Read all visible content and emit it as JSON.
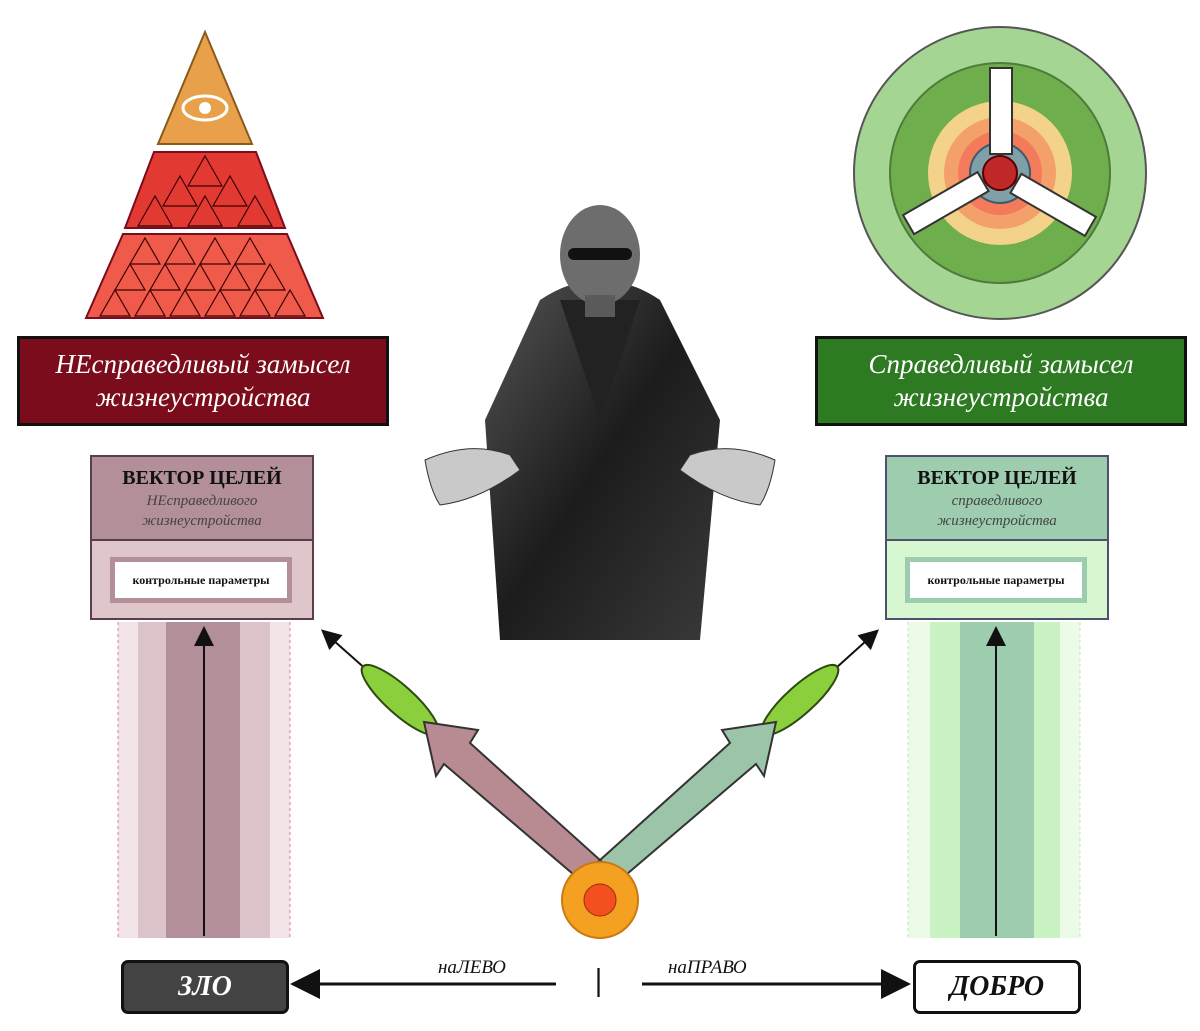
{
  "left": {
    "title_line1": "НЕсправедливый замысел",
    "title_line2": "жизнеустройства",
    "vector_title": "ВЕКТОР ЦЕЛЕЙ",
    "vector_sub1": "НЕсправедливого",
    "vector_sub2": "жизнеустройства",
    "params_label": "контрольные параметры",
    "word": "ЗЛО",
    "direction": "наЛЕВО"
  },
  "right": {
    "title_line1": "Справедливый замысел",
    "title_line2": "жизнеустройства",
    "vector_title": "ВЕКТОР ЦЕЛЕЙ",
    "vector_sub1": "справедливого",
    "vector_sub2": "жизнеустройства",
    "params_label": "контрольные параметры",
    "word": "ДОБРО",
    "direction": "наПРАВО"
  },
  "center_marker": "|",
  "colors": {
    "unjust_dark": "#7a0c1c",
    "just_dark": "#2d7a22",
    "pyramid_red": "#e84a3c",
    "pyramid_top": "#e8a14a",
    "wheel_green": "#a4d592",
    "node_orange": "#f4a020"
  },
  "icons": {
    "pyramid": "pyramid-eye-icon",
    "wheel": "three-spoke-wheel-icon",
    "figure": "person-figure-icon"
  }
}
